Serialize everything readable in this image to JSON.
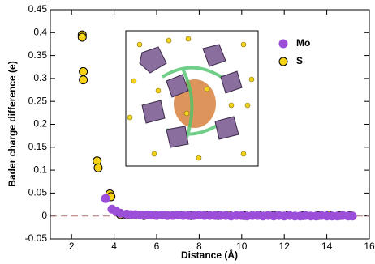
{
  "chart_data": {
    "type": "scatter",
    "xlabel": "Distance (Å)",
    "ylabel": "Bader charge difference (e)",
    "xlim": [
      1,
      16
    ],
    "xticks": [
      2,
      4,
      6,
      8,
      10,
      12,
      14,
      16
    ],
    "ylim": [
      -0.05,
      0.45
    ],
    "yticks": [
      -0.05,
      0,
      0.05,
      0.1,
      0.15,
      0.2,
      0.25,
      0.3,
      0.35,
      0.4,
      0.45
    ],
    "grid": false,
    "legend": "upper right",
    "series": [
      {
        "name": "Mo",
        "color": "#9b4fd8",
        "x": [
          3.6,
          3.9,
          4.1,
          4.3,
          4.6,
          4.8,
          5.0,
          5.25,
          5.5,
          5.75,
          6.0,
          6.25,
          6.5,
          6.75,
          7.0,
          7.25,
          7.5,
          7.75,
          8.0,
          8.25,
          8.5,
          8.75,
          9.0,
          9.25,
          9.5,
          9.75,
          10.0,
          10.25,
          10.5,
          10.75,
          11.0,
          11.25,
          11.5,
          11.75,
          12.0,
          12.25,
          12.5,
          12.75,
          13.0,
          13.25,
          13.5,
          13.75,
          14.0,
          14.25,
          14.5,
          14.75,
          15.0,
          15.2
        ],
        "values": [
          0.038,
          0.015,
          0.01,
          0.006,
          0.004,
          0.003,
          0.003,
          0.002,
          0.002,
          0.002,
          0.001,
          0.002,
          0.001,
          0.001,
          0.002,
          0.001,
          0.001,
          0.001,
          0.002,
          0.001,
          0.001,
          0.001,
          0.001,
          0.001,
          0.0,
          0.001,
          0.001,
          0.0,
          0.001,
          0.001,
          0.0,
          0.001,
          0.0,
          0.001,
          0.0,
          0.001,
          0.0,
          0.0,
          0.001,
          0.0,
          0.0,
          0.001,
          0.0,
          0.0,
          0.0,
          0.001,
          0.0,
          0.0
        ]
      },
      {
        "name": "S",
        "color": "#f5d216",
        "x": [
          2.5,
          2.5,
          2.55,
          2.55,
          3.2,
          3.25,
          3.8,
          3.85,
          4.3,
          4.6,
          5.4,
          5.9,
          6.5,
          7.2,
          7.6,
          8.3,
          8.9,
          9.4,
          10.1,
          10.8,
          11.5,
          12.2,
          12.9,
          13.6,
          14.1,
          14.6,
          15.1
        ],
        "values": [
          0.395,
          0.39,
          0.315,
          0.297,
          0.12,
          0.105,
          0.048,
          0.042,
          0.003,
          0.002,
          0.001,
          0.002,
          0.001,
          0.002,
          0.001,
          0.002,
          0.001,
          0.002,
          0.001,
          0.002,
          0.001,
          0.002,
          0.001,
          0.001,
          0.002,
          0.001,
          0.001
        ]
      }
    ]
  }
}
